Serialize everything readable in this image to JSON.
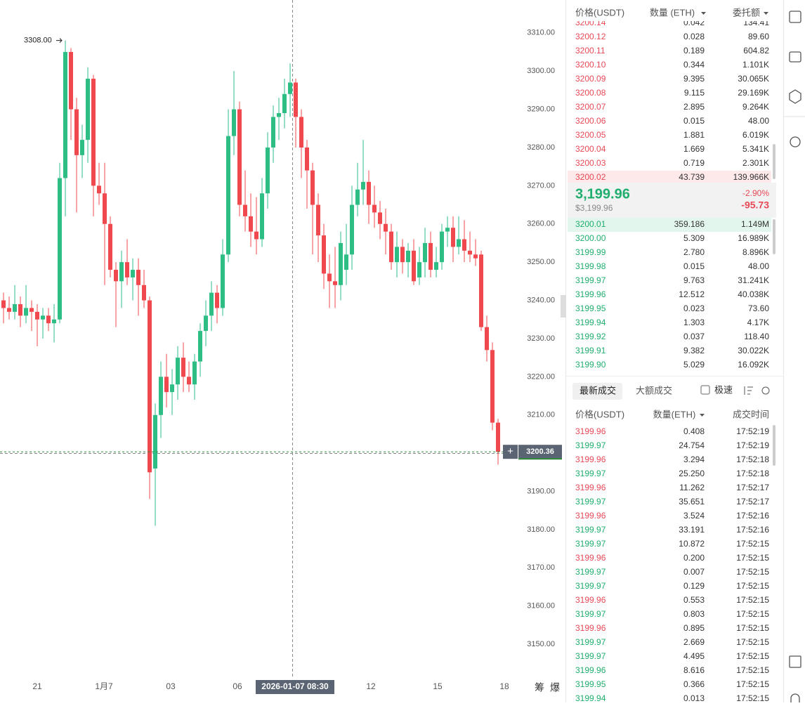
{
  "chart_data": {
    "type": "candlestick",
    "candles": [
      [
        3240,
        3242,
        3234,
        3238
      ],
      [
        3238,
        3241,
        3235,
        3237
      ],
      [
        3237,
        3244,
        3235,
        3239
      ],
      [
        3239,
        3241,
        3233,
        3236
      ],
      [
        3236,
        3244,
        3234,
        3238
      ],
      [
        3238,
        3240,
        3232,
        3237
      ],
      [
        3237,
        3239,
        3228,
        3235
      ],
      [
        3235,
        3238,
        3230,
        3236
      ],
      [
        3236,
        3238,
        3232,
        3234
      ],
      [
        3234,
        3239,
        3229,
        3235
      ],
      [
        3235,
        3276,
        3234,
        3272
      ],
      [
        3272,
        3308,
        3262,
        3305
      ],
      [
        3305,
        3306,
        3282,
        3290
      ],
      [
        3290,
        3293,
        3263,
        3278
      ],
      [
        3278,
        3286,
        3272,
        3282
      ],
      [
        3282,
        3301,
        3276,
        3298
      ],
      [
        3298,
        3299,
        3262,
        3270
      ],
      [
        3270,
        3276,
        3265,
        3268
      ],
      [
        3268,
        3276,
        3244,
        3260
      ],
      [
        3260,
        3262,
        3246,
        3248
      ],
      [
        3248,
        3250,
        3233,
        3245
      ],
      [
        3245,
        3253,
        3238,
        3250
      ],
      [
        3250,
        3256,
        3244,
        3246
      ],
      [
        3246,
        3251,
        3240,
        3248
      ],
      [
        3248,
        3251,
        3236,
        3244
      ],
      [
        3244,
        3248,
        3238,
        3240
      ],
      [
        3240,
        3241,
        3188,
        3195
      ],
      [
        3196,
        3213,
        3181,
        3210
      ],
      [
        3210,
        3224,
        3204,
        3220
      ],
      [
        3220,
        3226,
        3212,
        3216
      ],
      [
        3216,
        3222,
        3210,
        3218
      ],
      [
        3218,
        3228,
        3214,
        3225
      ],
      [
        3225,
        3229,
        3216,
        3220
      ],
      [
        3220,
        3224,
        3216,
        3218
      ],
      [
        3218,
        3226,
        3214,
        3224
      ],
      [
        3224,
        3234,
        3220,
        3232
      ],
      [
        3232,
        3240,
        3228,
        3236
      ],
      [
        3236,
        3245,
        3232,
        3242
      ],
      [
        3242,
        3244,
        3234,
        3238
      ],
      [
        3238,
        3256,
        3236,
        3252
      ],
      [
        3252,
        3290,
        3250,
        3283
      ],
      [
        3283,
        3300,
        3278,
        3290
      ],
      [
        3290,
        3292,
        3262,
        3265
      ],
      [
        3265,
        3274,
        3258,
        3262
      ],
      [
        3262,
        3268,
        3254,
        3258
      ],
      [
        3258,
        3267,
        3252,
        3256
      ],
      [
        3256,
        3272,
        3254,
        3268
      ],
      [
        3268,
        3284,
        3264,
        3280
      ],
      [
        3280,
        3291,
        3276,
        3288
      ],
      [
        3288,
        3293,
        3282,
        3289
      ],
      [
        3289,
        3298,
        3285,
        3294
      ],
      [
        3294,
        3302,
        3288,
        3297
      ],
      [
        3297,
        3298,
        3280,
        3288
      ],
      [
        3288,
        3290,
        3272,
        3280
      ],
      [
        3280,
        3282,
        3264,
        3274
      ],
      [
        3274,
        3276,
        3252,
        3265
      ],
      [
        3265,
        3268,
        3250,
        3257
      ],
      [
        3257,
        3260,
        3243,
        3247
      ],
      [
        3247,
        3252,
        3238,
        3245
      ],
      [
        3245,
        3254,
        3238,
        3244
      ],
      [
        3244,
        3258,
        3240,
        3255
      ],
      [
        3248,
        3260,
        3244,
        3252
      ],
      [
        3252,
        3270,
        3248,
        3265
      ],
      [
        3265,
        3276,
        3262,
        3269
      ],
      [
        3269,
        3282,
        3265,
        3271
      ],
      [
        3271,
        3274,
        3260,
        3265
      ],
      [
        3265,
        3270,
        3259,
        3263
      ],
      [
        3263,
        3266,
        3256,
        3260
      ],
      [
        3260,
        3264,
        3252,
        3258
      ],
      [
        3258,
        3260,
        3248,
        3250
      ],
      [
        3250,
        3258,
        3246,
        3254
      ],
      [
        3254,
        3256,
        3247,
        3250
      ],
      [
        3250,
        3255,
        3246,
        3253
      ],
      [
        3253,
        3256,
        3244,
        3245
      ],
      [
        3246,
        3254,
        3244,
        3250
      ],
      [
        3250,
        3259,
        3246,
        3255
      ],
      [
        3255,
        3258,
        3246,
        3248
      ],
      [
        3248,
        3254,
        3246,
        3250
      ],
      [
        3250,
        3260,
        3248,
        3258
      ],
      [
        3258,
        3262,
        3254,
        3259
      ],
      [
        3259,
        3262,
        3250,
        3254
      ],
      [
        3254,
        3262,
        3252,
        3256
      ],
      [
        3256,
        3261,
        3250,
        3253
      ],
      [
        3253,
        3258,
        3250,
        3252
      ],
      [
        3252,
        3256,
        3249,
        3251
      ],
      [
        3252,
        3253,
        3232,
        3233
      ],
      [
        3233,
        3236,
        3224,
        3227
      ],
      [
        3227,
        3229,
        3206,
        3208
      ],
      [
        3208,
        3209,
        3197,
        3200.36
      ]
    ],
    "up_color": "#2ebd85",
    "down_color": "#f0484f",
    "ylim": [
      3141.2,
      3318.6
    ],
    "yticks": [
      {
        "value": 3310,
        "label": "3310.00"
      },
      {
        "value": 3300,
        "label": "3300.00"
      },
      {
        "value": 3290,
        "label": "3290.00"
      },
      {
        "value": 3280,
        "label": "3280.00"
      },
      {
        "value": 3270,
        "label": "3270.00"
      },
      {
        "value": 3260,
        "label": "3260.00"
      },
      {
        "value": 3250,
        "label": "3250.00"
      },
      {
        "value": 3240,
        "label": "3240.00"
      },
      {
        "value": 3230,
        "label": "3230.00"
      },
      {
        "value": 3220,
        "label": "3220.00"
      },
      {
        "value": 3210,
        "label": "3210.00"
      },
      {
        "value": 3200,
        "label": "3200.00"
      },
      {
        "value": 3190,
        "label": "3190.00"
      },
      {
        "value": 3180,
        "label": "3180.00"
      },
      {
        "value": 3170,
        "label": "3170.00"
      },
      {
        "value": 3160,
        "label": "3160.00"
      },
      {
        "value": 3150,
        "label": "3150.00"
      }
    ],
    "x_labels": [
      "21",
      "1月7",
      "03",
      "06",
      "12",
      "15",
      "18"
    ],
    "crosshair_label": "2026-01-07 08:30",
    "high_annotation": {
      "value": 3308,
      "label": "3308.00"
    },
    "tools": [
      "筹",
      "爆"
    ]
  },
  "orderbook": {
    "headers": [
      "价格(USDT)",
      "数量 (ETH)",
      "委托额"
    ],
    "asks": [
      [
        "3200.14",
        "0.042",
        "134.41"
      ],
      [
        "3200.12",
        "0.028",
        "89.60"
      ],
      [
        "3200.11",
        "0.189",
        "604.82"
      ],
      [
        "3200.10",
        "0.344",
        "1.101K"
      ],
      [
        "3200.09",
        "9.395",
        "30.065K"
      ],
      [
        "3200.08",
        "9.115",
        "29.169K"
      ],
      [
        "3200.07",
        "2.895",
        "9.264K"
      ],
      [
        "3200.06",
        "0.015",
        "48.00"
      ],
      [
        "3200.05",
        "1.881",
        "6.019K"
      ],
      [
        "3200.04",
        "1.669",
        "5.341K"
      ],
      [
        "3200.03",
        "0.719",
        "2.301K"
      ],
      [
        "3200.02",
        "43.739",
        "139.966K"
      ]
    ],
    "mid": {
      "price": "3,199.96",
      "usd": "$3,199.96",
      "change_pct": "-2.90%",
      "change": "-95.73"
    },
    "bids": [
      [
        "3200.01",
        "359.186",
        "1.149M"
      ],
      [
        "3200.00",
        "5.309",
        "16.989K"
      ],
      [
        "3199.99",
        "2.780",
        "8.896K"
      ],
      [
        "3199.98",
        "0.015",
        "48.00"
      ],
      [
        "3199.97",
        "9.763",
        "31.241K"
      ],
      [
        "3199.96",
        "12.512",
        "40.038K"
      ],
      [
        "3199.95",
        "0.023",
        "73.60"
      ],
      [
        "3199.94",
        "1.303",
        "4.17K"
      ],
      [
        "3199.92",
        "0.037",
        "118.40"
      ],
      [
        "3199.91",
        "9.382",
        "30.022K"
      ],
      [
        "3199.90",
        "5.029",
        "16.092K"
      ]
    ]
  },
  "trades": {
    "tabs": [
      "最新成交",
      "大额成交"
    ],
    "toggle": "极速",
    "headers": [
      "价格(USDT)",
      "数量(ETH)",
      "成交时间"
    ],
    "rows": [
      [
        "3199.96",
        "0.408",
        "17:52:19"
      ],
      [
        "3199.97",
        "24.754",
        "17:52:19"
      ],
      [
        "3199.96",
        "3.294",
        "17:52:18"
      ],
      [
        "3199.97",
        "25.250",
        "17:52:18"
      ],
      [
        "3199.96",
        "11.262",
        "17:52:17"
      ],
      [
        "3199.97",
        "35.651",
        "17:52:17"
      ],
      [
        "3199.96",
        "3.524",
        "17:52:16"
      ],
      [
        "3199.97",
        "33.191",
        "17:52:16"
      ],
      [
        "3199.97",
        "10.872",
        "17:52:15"
      ],
      [
        "3199.96",
        "0.200",
        "17:52:15"
      ],
      [
        "3199.97",
        "0.007",
        "17:52:15"
      ],
      [
        "3199.97",
        "0.129",
        "17:52:15"
      ],
      [
        "3199.96",
        "0.553",
        "17:52:15"
      ],
      [
        "3199.97",
        "0.803",
        "17:52:15"
      ],
      [
        "3199.96",
        "0.895",
        "17:52:15"
      ],
      [
        "3199.97",
        "2.669",
        "17:52:15"
      ],
      [
        "3199.97",
        "4.495",
        "17:52:15"
      ],
      [
        "3199.96",
        "8.616",
        "17:52:15"
      ],
      [
        "3199.95",
        "0.366",
        "17:52:15"
      ],
      [
        "3199.94",
        "0.013",
        "17:52:15"
      ]
    ],
    "sides": [
      "sell",
      "buy",
      "sell",
      "buy",
      "sell",
      "buy",
      "sell",
      "buy",
      "buy",
      "sell",
      "buy",
      "buy",
      "sell",
      "buy",
      "sell",
      "buy",
      "buy",
      "buy",
      "buy",
      "buy"
    ]
  }
}
